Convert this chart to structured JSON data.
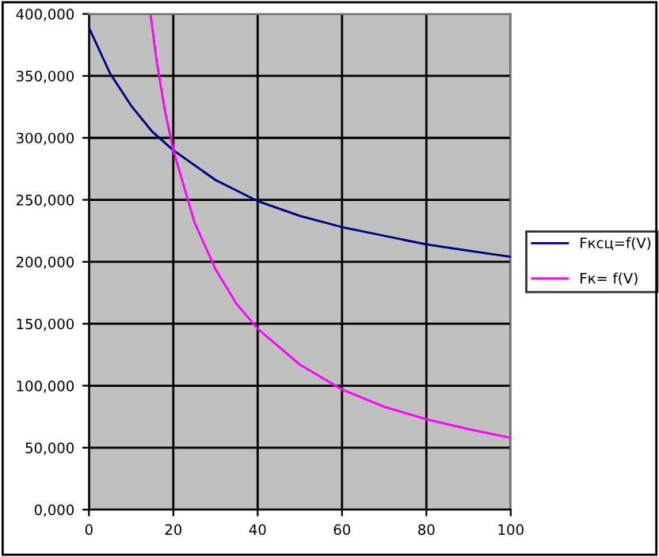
{
  "chart_data": {
    "type": "line",
    "series": [
      {
        "name": "Fксц=f(V)",
        "color": "#000080",
        "x": [
          0,
          5,
          10,
          15,
          20,
          30,
          40,
          50,
          60,
          70,
          80,
          90,
          100
        ],
        "values": [
          389000,
          352000,
          326000,
          305000,
          290000,
          266000,
          249000,
          237000,
          228000,
          221000,
          214000,
          209000,
          204000
        ]
      },
      {
        "name": "Fк= f(V)",
        "color": "#ff00ff",
        "x": [
          14.6,
          16,
          18,
          20,
          25,
          30,
          35,
          40,
          50,
          60,
          70,
          80,
          90,
          100
        ],
        "values": [
          400000,
          363000,
          322000,
          290000,
          232000,
          194000,
          166000,
          146000,
          117000,
          97000,
          83000,
          73000,
          65000,
          58000
        ]
      }
    ],
    "xlim": [
      0,
      100
    ],
    "xticks": [
      0,
      20,
      40,
      60,
      80,
      100
    ],
    "ylim": [
      0,
      400000
    ],
    "yticks": [
      {
        "value": 0,
        "label": "0,000"
      },
      {
        "value": 50000,
        "label": "50,000"
      },
      {
        "value": 100000,
        "label": "100,000"
      },
      {
        "value": 150000,
        "label": "150,000"
      },
      {
        "value": 200000,
        "label": "200,000"
      },
      {
        "value": 250000,
        "label": "250,000"
      },
      {
        "value": 300000,
        "label": "300,000"
      },
      {
        "value": 350000,
        "label": "350,000"
      },
      {
        "value": 400000,
        "label": "400,000"
      }
    ],
    "grid": true,
    "legend": "right",
    "marker": "none",
    "line_style": "solid"
  }
}
